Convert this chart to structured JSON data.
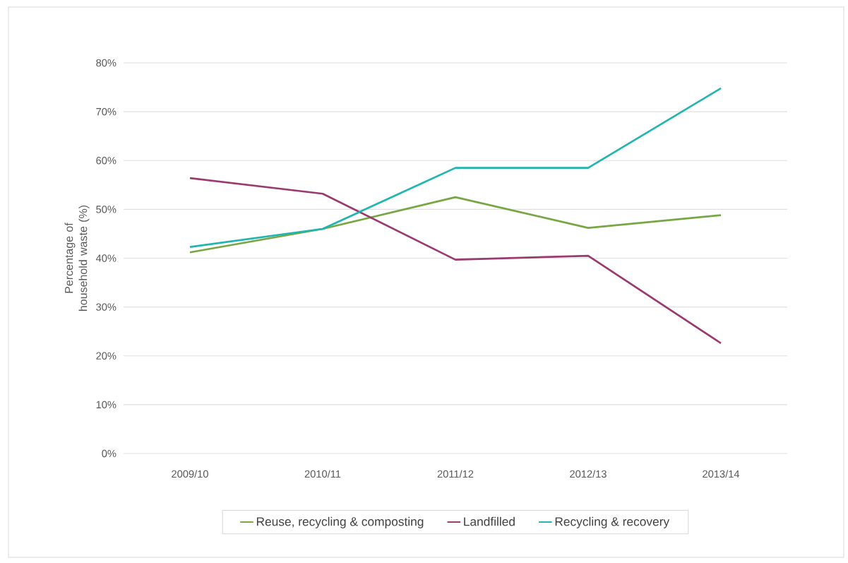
{
  "chart_data": {
    "type": "line",
    "ylabel": "Percentage of household waste (%)",
    "categories": [
      "2009/10",
      "2010/11",
      "2011/12",
      "2012/13",
      "2013/14"
    ],
    "series": [
      {
        "name": "Reuse, recycling & composting",
        "color": "#77a743",
        "values": [
          41.2,
          46.0,
          52.5,
          46.2,
          48.8
        ]
      },
      {
        "name": "Landfilled",
        "color": "#9b3a6e",
        "values": [
          56.4,
          53.2,
          39.7,
          40.5,
          22.6
        ]
      },
      {
        "name": "Recycling & recovery",
        "color": "#1fb5b0",
        "values": [
          42.3,
          46.0,
          58.5,
          58.5,
          74.8
        ]
      }
    ],
    "ylim": [
      0,
      80
    ],
    "yticks": [
      {
        "value": 0,
        "label": "0%"
      },
      {
        "value": 10,
        "label": "10%"
      },
      {
        "value": 20,
        "label": "20%"
      },
      {
        "value": 30,
        "label": "30%"
      },
      {
        "value": 40,
        "label": "40%"
      },
      {
        "value": 50,
        "label": "50%"
      },
      {
        "value": 60,
        "label": "60%"
      },
      {
        "value": 70,
        "label": "70%"
      },
      {
        "value": 80,
        "label": "80%"
      }
    ],
    "grid": "y",
    "legend": "bottom",
    "marker": "none",
    "line_style": "solid"
  }
}
